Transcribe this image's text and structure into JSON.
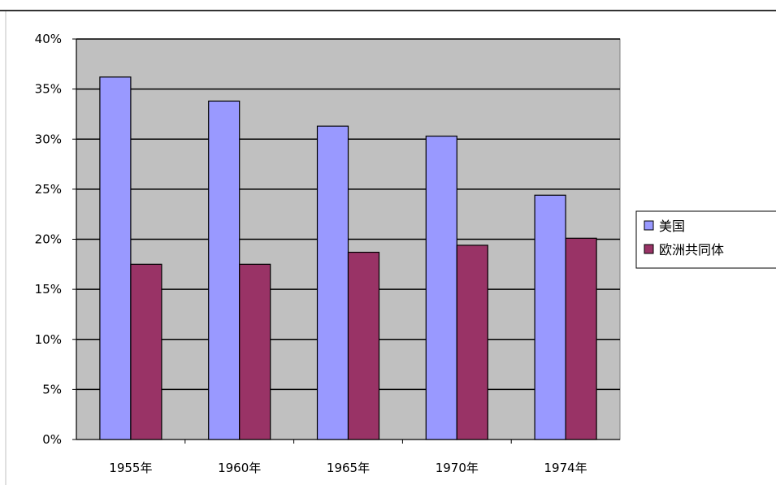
{
  "chart_data": {
    "type": "bar",
    "categories": [
      "1955年",
      "1960年",
      "1965年",
      "1970年",
      "1974年"
    ],
    "series": [
      {
        "name": "美国",
        "values": [
          36.2,
          33.8,
          31.3,
          30.3,
          24.4
        ],
        "color": "#9999ff"
      },
      {
        "name": "欧洲共同体",
        "values": [
          17.5,
          17.5,
          18.7,
          19.4,
          20.1
        ],
        "color": "#993366"
      }
    ],
    "y_ticks": [
      "0%",
      "5%",
      "10%",
      "15%",
      "20%",
      "25%",
      "30%",
      "35%",
      "40%"
    ],
    "ylim": [
      0,
      40
    ],
    "y_unit": "%",
    "grid": true,
    "plot_background": "#c0c0c0",
    "legend_position": "right",
    "title": "",
    "xlabel": "",
    "ylabel": ""
  }
}
